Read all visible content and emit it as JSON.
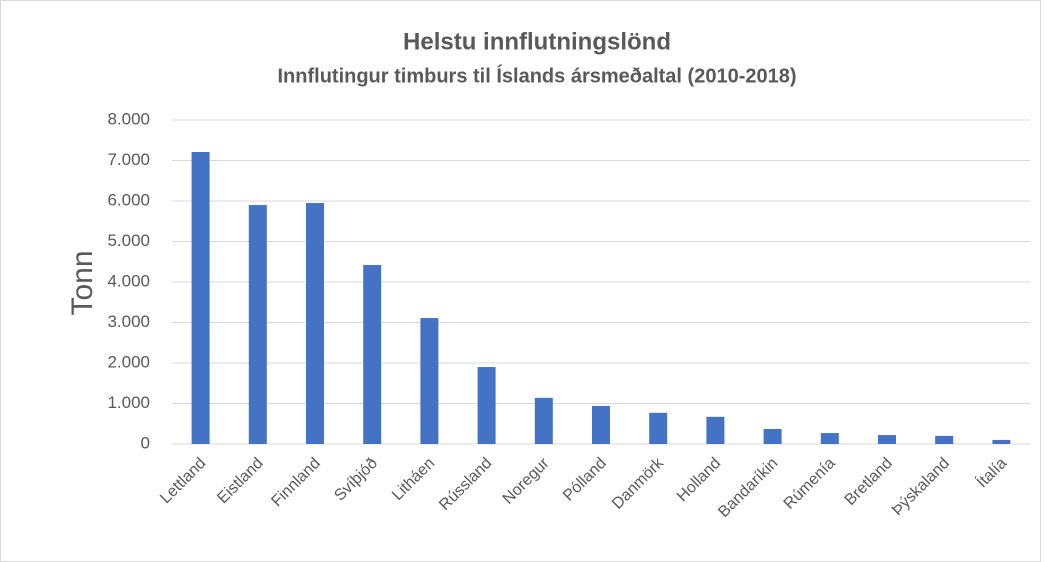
{
  "chart_data": {
    "type": "bar",
    "title": "Helstu innflutningslönd",
    "subtitle": "Innflutingur timburs til Íslands ársmeðaltal (2010-2018)",
    "y_label": "Tonn",
    "categories": [
      "Lettland",
      "Eistland",
      "Finnland",
      "Svíþjóð",
      "Litháen",
      "Rússland",
      "Noregur",
      "Pólland",
      "Danmörk",
      "Holland",
      "Bandaríkin",
      "Rúmenía",
      "Bretland",
      "Þýskaland",
      "Ítalía"
    ],
    "values": [
      7210,
      5900,
      5950,
      4420,
      3110,
      1900,
      1140,
      940,
      770,
      670,
      370,
      270,
      220,
      200,
      100
    ],
    "color": "#4472c4",
    "ylim": [
      0,
      8000
    ],
    "yticks": [
      0,
      {
        "value": 1000,
        "label": "1.000"
      },
      {
        "value": 2000,
        "label": "2.000"
      },
      {
        "value": 3000,
        "label": "3.000"
      },
      {
        "value": 4000,
        "label": "4.000"
      },
      {
        "value": 5000,
        "label": "5.000"
      },
      {
        "value": 6000,
        "label": "6.000"
      },
      {
        "value": 7000,
        "label": "7.000"
      },
      {
        "value": 8000,
        "label": "8.000"
      }
    ],
    "grid": true
  }
}
